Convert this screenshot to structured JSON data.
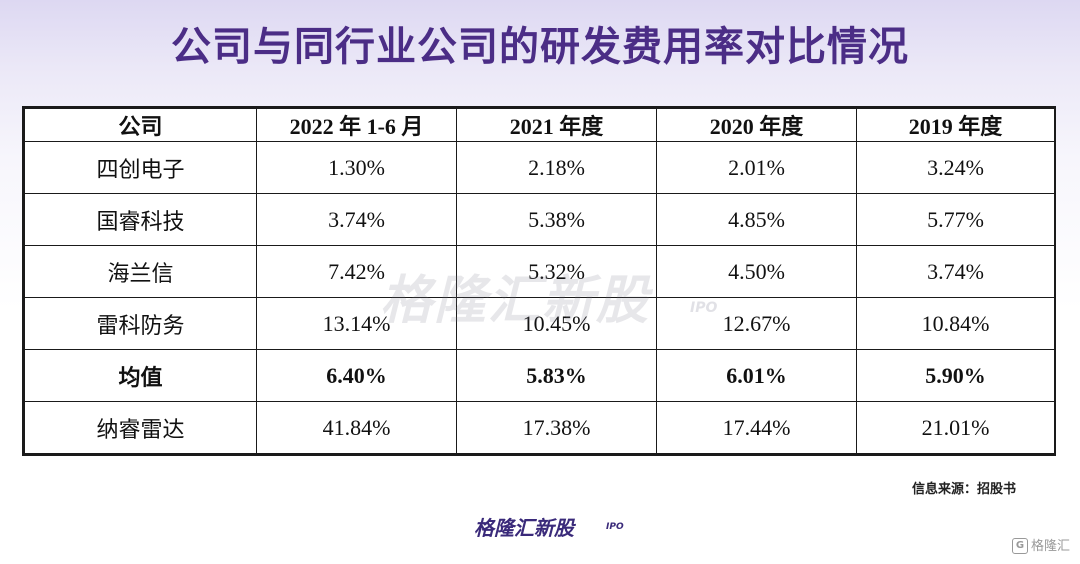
{
  "title": "公司与同行业公司的研发费用率对比情况",
  "table": {
    "headers": [
      "公司",
      "2022 年 1-6 月",
      "2021 年度",
      "2020 年度",
      "2019 年度"
    ],
    "rows": [
      {
        "company": "四创电子",
        "values": [
          "1.30%",
          "2.18%",
          "2.01%",
          "3.24%"
        ],
        "bold": false
      },
      {
        "company": "国睿科技",
        "values": [
          "3.74%",
          "5.38%",
          "4.85%",
          "5.77%"
        ],
        "bold": false
      },
      {
        "company": "海兰信",
        "values": [
          "7.42%",
          "5.32%",
          "4.50%",
          "3.74%"
        ],
        "bold": false
      },
      {
        "company": "雷科防务",
        "values": [
          "13.14%",
          "10.45%",
          "12.67%",
          "10.84%"
        ],
        "bold": false
      },
      {
        "company": "均值",
        "values": [
          "6.40%",
          "5.83%",
          "6.01%",
          "5.90%"
        ],
        "bold": true
      },
      {
        "company": "纳睿雷达",
        "values": [
          "41.84%",
          "17.38%",
          "17.44%",
          "21.01%"
        ],
        "bold": false
      }
    ]
  },
  "watermark": {
    "text": "格隆汇新股",
    "sub": "IPO"
  },
  "source": "信息来源：招股书",
  "brand": {
    "text": "格隆汇新股",
    "sub": "IPO"
  },
  "corner": {
    "glyph": "G",
    "text": "格隆汇"
  },
  "colors": {
    "title": "#4b2d86",
    "brand": "#3a2a7a"
  }
}
